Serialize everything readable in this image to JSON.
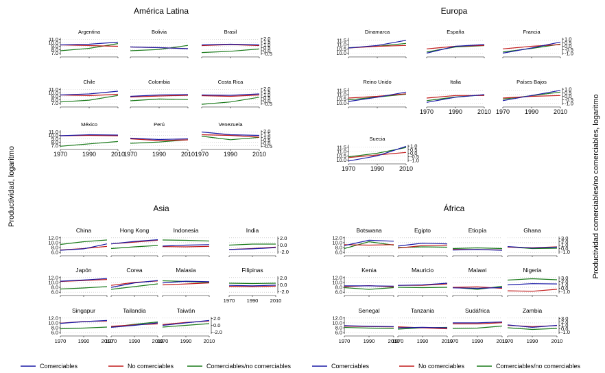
{
  "figure": {
    "left_axis_title": "Productividad, logaritmo",
    "right_axis_title": "Productividad comerciables/no comerciables, logaritmo"
  },
  "legend_items": [
    "Comerciables",
    "No comerciables",
    "Comerciables/no comerciables"
  ],
  "colors": {
    "comerciables": "#1a1aa6",
    "no_comerciables": "#c21b1b",
    "ratio": "#1a7a1a",
    "grid": "#bbbbbb"
  },
  "chart_data": [
    {
      "type": "line",
      "title": "América Latina",
      "x_ticks": [
        "1970",
        "1990",
        "2010"
      ],
      "left_ticks": [
        "11.0",
        "10.0",
        "9.0",
        "8.0",
        "7.0"
      ],
      "right_ticks": [
        "2.0",
        "1.5",
        "1.0",
        "0.5",
        "0.0",
        "-0.5"
      ],
      "ylim_left": [
        6.5,
        11.5
      ],
      "ylim_right": [
        -0.7,
        2.2
      ],
      "panels": [
        {
          "name": "Argentina",
          "x": [
            1970,
            1990,
            2010
          ],
          "comerciables": [
            9.4,
            9.6,
            10.2
          ],
          "no_comerciables": [
            9.4,
            9.2,
            9.0
          ],
          "ratio": [
            0.0,
            0.4,
            1.2
          ]
        },
        {
          "name": "Bolivia",
          "x": [
            1970,
            1990,
            2010
          ],
          "comerciables": [
            8.8,
            8.6,
            8.3
          ],
          "no_comerciables": [
            8.8,
            8.6,
            8.3
          ],
          "ratio": [
            0.0,
            0.2,
            0.9
          ]
        },
        {
          "name": "Brasil",
          "x": [
            1970,
            1990,
            2010
          ],
          "comerciables": [
            9.4,
            9.6,
            9.4
          ],
          "no_comerciables": [
            9.2,
            9.5,
            9.2
          ],
          "ratio": [
            -0.3,
            -0.1,
            0.3
          ]
        },
        {
          "name": "Chile",
          "x": [
            1970,
            1990,
            2010
          ],
          "comerciables": [
            9.4,
            9.7,
            10.5
          ],
          "no_comerciables": [
            9.4,
            9.2,
            9.6
          ],
          "ratio": [
            -0.2,
            0.1,
            0.9
          ]
        },
        {
          "name": "Colombia",
          "x": [
            1970,
            1990,
            2010
          ],
          "comerciables": [
            9.0,
            9.4,
            9.5
          ],
          "no_comerciables": [
            8.8,
            9.1,
            9.3
          ],
          "ratio": [
            0.0,
            0.3,
            0.2
          ]
        },
        {
          "name": "Costa Rica",
          "x": [
            1970,
            1990,
            2010
          ],
          "comerciables": [
            9.4,
            9.3,
            9.7
          ],
          "no_comerciables": [
            9.2,
            9.0,
            9.4
          ],
          "ratio": [
            -0.6,
            -0.2,
            0.6
          ]
        },
        {
          "name": "México",
          "x": [
            1970,
            1990,
            2010
          ],
          "comerciables": [
            9.9,
            10.2,
            10.1
          ],
          "no_comerciables": [
            9.9,
            10.0,
            9.9
          ],
          "ratio": [
            -0.5,
            -0.1,
            0.3
          ]
        },
        {
          "name": "Perú",
          "x": [
            1970,
            1990,
            2010
          ],
          "comerciables": [
            9.2,
            8.8,
            9.0
          ],
          "no_comerciables": [
            9.0,
            8.5,
            8.7
          ],
          "ratio": [
            0.0,
            0.2,
            0.6
          ]
        },
        {
          "name": "Venezuela",
          "x": [
            1970,
            1990,
            2010
          ],
          "comerciables": [
            11.0,
            10.2,
            10.0
          ],
          "no_comerciables": [
            10.2,
            10.0,
            9.5
          ],
          "ratio": [
            1.2,
            0.6,
            1.0
          ]
        }
      ]
    },
    {
      "type": "line",
      "title": "Europa",
      "x_ticks": [
        "1970",
        "1990",
        "2010"
      ],
      "left_ticks": [
        "11.5",
        "11.0",
        "10.5",
        "10.0"
      ],
      "right_ticks": [
        "1.0",
        "0.5",
        "0.0",
        "-0.5",
        "-1.0"
      ],
      "ylim_left": [
        9.8,
        11.8
      ],
      "ylim_right": [
        -1.2,
        1.2
      ],
      "panels": [
        {
          "name": "Dinamarca",
          "x": [
            1970,
            1990,
            2010
          ],
          "comerciables": [
            10.6,
            10.9,
            11.5
          ],
          "no_comerciables": [
            10.6,
            10.8,
            10.9
          ],
          "ratio": [
            -0.2,
            0.0,
            0.4
          ]
        },
        {
          "name": "España",
          "x": [
            1970,
            1990,
            2010
          ],
          "comerciables": [
            10.0,
            10.8,
            11.0
          ],
          "no_comerciables": [
            10.5,
            10.8,
            10.9
          ],
          "ratio": [
            -0.8,
            -0.1,
            0.1
          ]
        },
        {
          "name": "Francia",
          "x": [
            1970,
            1990,
            2010
          ],
          "comerciables": [
            10.0,
            10.6,
            11.3
          ],
          "no_comerciables": [
            10.5,
            10.8,
            11.0
          ],
          "ratio": [
            -0.8,
            -0.3,
            0.3
          ]
        },
        {
          "name": "Reino Unido",
          "x": [
            1970,
            1990,
            2010
          ],
          "comerciables": [
            10.2,
            10.7,
            11.3
          ],
          "no_comerciables": [
            10.6,
            10.8,
            11.1
          ],
          "ratio": [
            -0.5,
            -0.1,
            0.3
          ]
        },
        {
          "name": "Italia",
          "x": [
            1970,
            1990,
            2010
          ],
          "comerciables": [
            10.1,
            10.7,
            11.0
          ],
          "no_comerciables": [
            10.6,
            10.9,
            10.9
          ],
          "ratio": [
            -0.6,
            -0.1,
            0.2
          ]
        },
        {
          "name": "Países Bajos",
          "x": [
            1970,
            1990,
            2010
          ],
          "comerciables": [
            10.3,
            10.9,
            11.5
          ],
          "no_comerciables": [
            10.6,
            10.8,
            10.9
          ],
          "ratio": [
            -0.4,
            0.1,
            0.6
          ]
        },
        {
          "name": "Suecia",
          "x": [
            1970,
            1990,
            2010
          ],
          "comerciables": [
            9.9,
            10.5,
            11.6
          ],
          "no_comerciables": [
            10.3,
            10.6,
            10.9
          ],
          "ratio": [
            -0.5,
            0.0,
            0.8
          ]
        }
      ]
    },
    {
      "type": "line",
      "title": "Asia",
      "x_ticks": [
        "1970",
        "1990",
        "2010"
      ],
      "left_ticks": [
        "12.0",
        "10.0",
        "8.0",
        "6.0"
      ],
      "right_ticks": [
        "2.0",
        "0.0",
        "-2.0"
      ],
      "ylim_left": [
        5.5,
        12.5
      ],
      "ylim_right": [
        -2.5,
        2.5
      ],
      "panels": [
        {
          "name": "China",
          "x": [
            1970,
            1990,
            2010
          ],
          "comerciables": [
            6.9,
            7.5,
            9.5
          ],
          "no_comerciables": [
            7.0,
            7.6,
            8.5
          ],
          "ratio": [
            0.2,
            1.0,
            1.5
          ]
        },
        {
          "name": "Hong Kong",
          "x": [
            1970,
            1990,
            2010
          ],
          "comerciables": [
            9.5,
            10.5,
            11.2
          ],
          "no_comerciables": [
            9.5,
            10.2,
            11.0
          ],
          "ratio": [
            -1.0,
            -0.5,
            -0.1
          ]
        },
        {
          "name": "Indonesia",
          "x": [
            1970,
            1990,
            2010
          ],
          "comerciables": [
            8.6,
            9.0,
            9.2
          ],
          "no_comerciables": [
            8.4,
            8.3,
            8.5
          ],
          "ratio": [
            1.5,
            1.4,
            1.2
          ]
        },
        {
          "name": "India",
          "x": [
            1970,
            1990,
            2010
          ],
          "comerciables": [
            7.2,
            7.5,
            8.0
          ],
          "no_comerciables": [
            7.2,
            7.6,
            8.2
          ],
          "ratio": [
            0.0,
            0.3,
            0.3
          ]
        },
        {
          "name": "Japón",
          "x": [
            1970,
            1990,
            2010
          ],
          "comerciables": [
            10.5,
            11.0,
            11.6
          ],
          "no_comerciables": [
            10.4,
            10.8,
            11.2
          ],
          "ratio": [
            -1.2,
            -0.9,
            -0.5
          ]
        },
        {
          "name": "Corea",
          "x": [
            1970,
            1990,
            2010
          ],
          "comerciables": [
            8.0,
            9.8,
            10.8
          ],
          "no_comerciables": [
            8.8,
            10.0,
            10.6
          ],
          "ratio": [
            -1.3,
            -0.5,
            0.3
          ]
        },
        {
          "name": "Malasia",
          "x": [
            1970,
            1990,
            2010
          ],
          "comerciables": [
            9.8,
            10.5,
            10.3
          ],
          "no_comerciables": [
            9.0,
            9.4,
            9.8
          ],
          "ratio": [
            1.2,
            1.0,
            0.7
          ]
        },
        {
          "name": "Filipinas",
          "x": [
            1970,
            1990,
            2010
          ],
          "comerciables": [
            8.8,
            8.6,
            8.9
          ],
          "no_comerciables": [
            8.4,
            8.3,
            8.5
          ],
          "ratio": [
            0.5,
            0.4,
            0.5
          ]
        },
        {
          "name": "Singapur",
          "x": [
            1970,
            1990,
            2010
          ],
          "comerciables": [
            9.8,
            10.5,
            11.0
          ],
          "no_comerciables": [
            9.9,
            10.6,
            10.8
          ],
          "ratio": [
            -1.0,
            -0.8,
            -0.5
          ]
        },
        {
          "name": "Tailandia",
          "x": [
            1970,
            1990,
            2010
          ],
          "comerciables": [
            8.2,
            9.0,
            10.0
          ],
          "no_comerciables": [
            8.6,
            9.2,
            9.6
          ],
          "ratio": [
            -0.5,
            0.3,
            1.0
          ]
        },
        {
          "name": "Taiwán",
          "x": [
            1970,
            1990,
            2010
          ],
          "comerciables": [
            9.0,
            10.0,
            11.0
          ],
          "no_comerciables": [
            9.3,
            10.2,
            10.8
          ],
          "ratio": [
            -0.5,
            0.0,
            0.5
          ]
        }
      ]
    },
    {
      "type": "line",
      "title": "África",
      "x_ticks": [
        "1970",
        "1990",
        "2010"
      ],
      "left_ticks": [
        "12.0",
        "10.0",
        "8.0",
        "6.0"
      ],
      "right_ticks": [
        "3.0",
        "2.0",
        "1.0",
        "0.0",
        "-1.0"
      ],
      "ylim_left": [
        5.5,
        12.5
      ],
      "ylim_right": [
        -1.5,
        3.5
      ],
      "panels": [
        {
          "name": "Botswana",
          "x": [
            1970,
            1990,
            2010
          ],
          "comerciables": [
            8.8,
            11.0,
            10.6
          ],
          "no_comerciables": [
            9.2,
            9.0,
            9.2
          ],
          "ratio": [
            0.0,
            2.0,
            1.0
          ]
        },
        {
          "name": "Egipto",
          "x": [
            1970,
            1990,
            2010
          ],
          "comerciables": [
            8.6,
            9.8,
            9.5
          ],
          "no_comerciables": [
            7.8,
            8.8,
            9.0
          ],
          "ratio": [
            0.3,
            0.5,
            0.4
          ]
        },
        {
          "name": "Etiopía",
          "x": [
            1970,
            1990,
            2010
          ],
          "comerciables": [
            7.0,
            7.2,
            6.9
          ],
          "no_comerciables": [
            7.2,
            7.2,
            7.0
          ],
          "ratio": [
            0.0,
            0.2,
            0.0
          ]
        },
        {
          "name": "Ghana",
          "x": [
            1970,
            1990,
            2010
          ],
          "comerciables": [
            8.4,
            7.8,
            8.2
          ],
          "no_comerciables": [
            8.2,
            7.9,
            8.3
          ],
          "ratio": [
            0.5,
            0.0,
            0.1
          ]
        },
        {
          "name": "Kenia",
          "x": [
            1970,
            1990,
            2010
          ],
          "comerciables": [
            8.6,
            8.6,
            8.5
          ],
          "no_comerciables": [
            8.3,
            8.7,
            8.2
          ],
          "ratio": [
            0.2,
            -0.3,
            0.2
          ]
        },
        {
          "name": "Mauricio",
          "x": [
            1970,
            1990,
            2010
          ],
          "comerciables": [
            8.8,
            9.0,
            9.7
          ],
          "no_comerciables": [
            8.8,
            8.8,
            9.4
          ],
          "ratio": [
            0.3,
            0.2,
            0.3
          ]
        },
        {
          "name": "Malawi",
          "x": [
            1970,
            1990,
            2010
          ],
          "comerciables": [
            7.8,
            7.6,
            7.9
          ],
          "no_comerciables": [
            8.0,
            8.2,
            7.6
          ],
          "ratio": [
            0.3,
            -0.3,
            0.6
          ]
        },
        {
          "name": "Nigeria",
          "x": [
            1970,
            1990,
            2010
          ],
          "comerciables": [
            9.0,
            9.5,
            9.4
          ],
          "no_comerciables": [
            6.6,
            6.4,
            7.2
          ],
          "ratio": [
            2.4,
            2.8,
            2.5
          ]
        },
        {
          "name": "Senegal",
          "x": [
            1970,
            1990,
            2010
          ],
          "comerciables": [
            8.9,
            8.6,
            8.5
          ],
          "no_comerciables": [
            8.7,
            8.5,
            8.4
          ],
          "ratio": [
            0.4,
            0.2,
            0.1
          ]
        },
        {
          "name": "Tanzania",
          "x": [
            1970,
            1990,
            2010
          ],
          "comerciables": [
            8.0,
            8.2,
            8.0
          ],
          "no_comerciables": [
            8.4,
            8.0,
            7.6
          ],
          "ratio": [
            -0.1,
            0.3,
            0.4
          ]
        },
        {
          "name": "Sudáfrica",
          "x": [
            1970,
            1990,
            2010
          ],
          "comerciables": [
            10.0,
            10.0,
            10.4
          ],
          "no_comerciables": [
            9.6,
            9.6,
            10.1
          ],
          "ratio": [
            0.1,
            0.2,
            0.8
          ]
        },
        {
          "name": "Zambia",
          "x": [
            1970,
            1990,
            2010
          ],
          "comerciables": [
            9.2,
            8.2,
            9.0
          ],
          "no_comerciables": [
            9.0,
            8.5,
            8.9
          ],
          "ratio": [
            0.3,
            -0.2,
            0.1
          ]
        }
      ]
    }
  ]
}
